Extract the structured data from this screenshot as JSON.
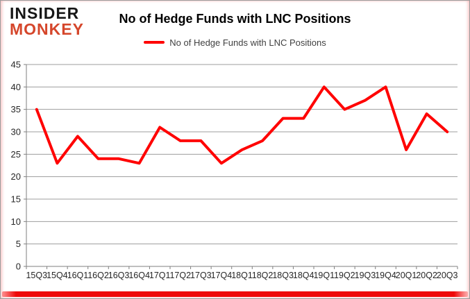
{
  "header": {
    "logo": {
      "line1": "INSIDER",
      "line2": "MONKEY",
      "line1_color": "#161616",
      "line2_color": "#d5462b"
    },
    "title": "No of Hedge Funds with LNC Positions",
    "legend": {
      "label": "No of Hedge Funds with LNC Positions",
      "swatch_color": "#ff0000"
    }
  },
  "chart_data": {
    "type": "line",
    "title": "No of Hedge Funds with LNC Positions",
    "categories": [
      "15Q3",
      "15Q4",
      "16Q1",
      "16Q2",
      "16Q3",
      "16Q4",
      "17Q1",
      "17Q2",
      "17Q3",
      "17Q4",
      "18Q1",
      "18Q2",
      "18Q3",
      "18Q4",
      "19Q1",
      "19Q2",
      "19Q3",
      "19Q4",
      "20Q1",
      "20Q2",
      "20Q3"
    ],
    "series": [
      {
        "name": "No of Hedge Funds with LNC Positions",
        "color": "#ff0000",
        "values": [
          35,
          23,
          29,
          24,
          24,
          23,
          31,
          28,
          28,
          23,
          26,
          28,
          33,
          33,
          40,
          35,
          37,
          40,
          26,
          34,
          30
        ]
      }
    ],
    "ylim": [
      0,
      45
    ],
    "ytick_step": 5,
    "grid": true,
    "legend_position": "top",
    "xlabel": "",
    "ylabel": ""
  },
  "colors": {
    "grid": "#9d9d9d",
    "axis": "#7f7f7f",
    "tick_label": "#262626",
    "bottom_bar": "#ee0a0a",
    "frame": "#9b9b9b"
  }
}
